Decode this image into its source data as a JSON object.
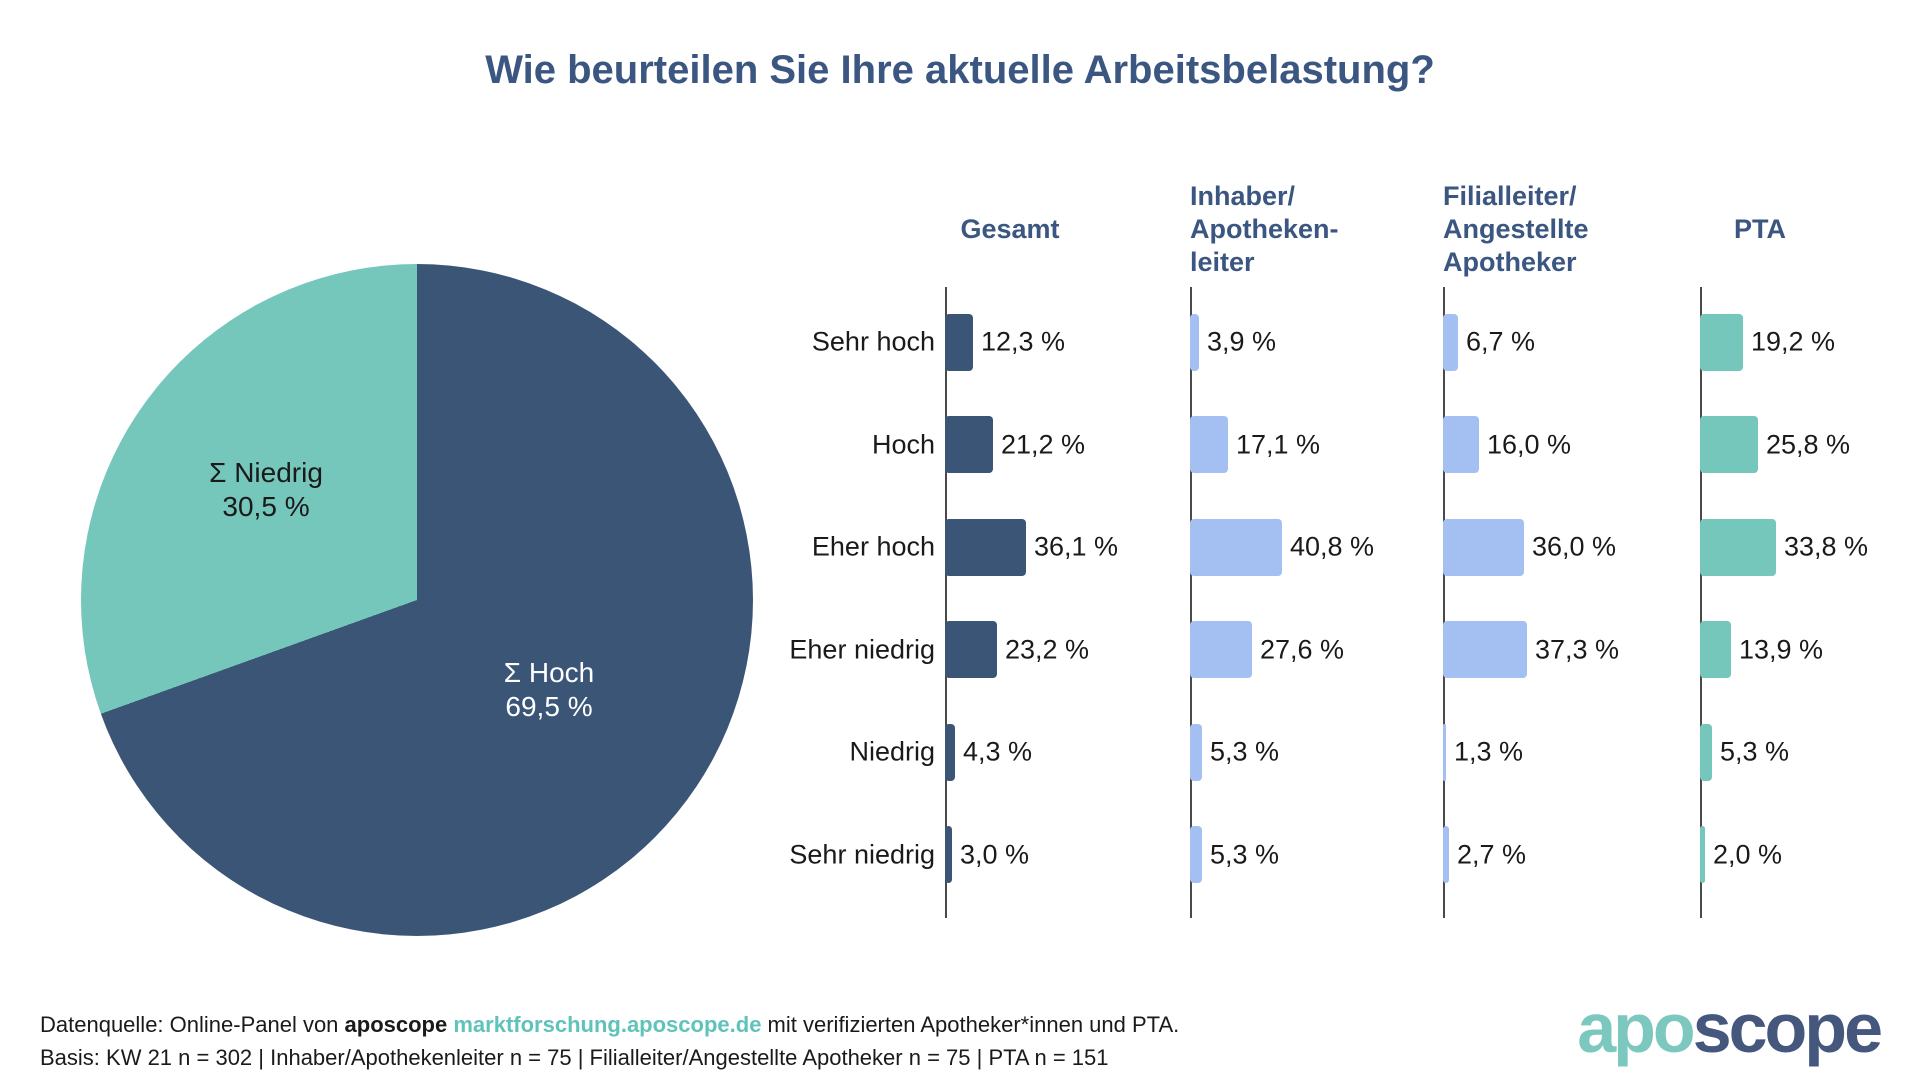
{
  "title": "Wie beurteilen Sie Ihre aktuelle Arbeitsbelastung?",
  "colors": {
    "title_blue": "#3A5681",
    "dark_blue": "#3B5577",
    "teal": "#75C6BB",
    "light_blue": "#A4C0F3",
    "link_teal": "#5FC3BA",
    "logo_teal": "#7CC8BE",
    "logo_blue": "#45577D",
    "axis_gray": "#4a4a4a"
  },
  "chart_data": [
    {
      "type": "pie",
      "start": "top",
      "direction": "clockwise",
      "slices": [
        {
          "name": "Σ Hoch",
          "value": 69.5,
          "label_line1": "Σ Hoch",
          "label_line2": "69,5 %",
          "color": "#3B5577",
          "text_color": "#ffffff"
        },
        {
          "name": "Σ Niedrig",
          "value": 30.5,
          "label_line1": "Σ Niedrig",
          "label_line2": "30,5 %",
          "color": "#75C6BB",
          "text_color": "#1a1a1a"
        }
      ]
    },
    {
      "type": "bar",
      "orientation": "horizontal",
      "value_suffix": " %",
      "xlim": [
        0,
        45
      ],
      "grid": false,
      "categories": [
        "Sehr hoch",
        "Hoch",
        "Eher hoch",
        "Eher niedrig",
        "Niedrig",
        "Sehr niedrig"
      ],
      "series": [
        {
          "name": "Gesamt",
          "color": "#3B5577",
          "values": [
            12.3,
            21.2,
            36.1,
            23.2,
            4.3,
            3.0
          ],
          "labels": [
            "12,3 %",
            "21,2 %",
            "36,1 %",
            "23,2 %",
            "4,3 %",
            "3,0 %"
          ]
        },
        {
          "name": "Inhaber/Apothekenleiter",
          "color": "#A4C0F3",
          "values": [
            3.9,
            17.1,
            40.8,
            27.6,
            5.3,
            5.3
          ],
          "labels": [
            "3,9 %",
            "17,1 %",
            "40,8 %",
            "27,6 %",
            "5,3 %",
            "5,3 %"
          ]
        },
        {
          "name": "Filialleiter/Angestellte Apotheker",
          "color": "#A4C0F3",
          "values": [
            6.7,
            16.0,
            36.0,
            37.3,
            1.3,
            2.7
          ],
          "labels": [
            "6,7 %",
            "16,0 %",
            "36,0 %",
            "37,3 %",
            "1,3 %",
            "2,7 %"
          ]
        },
        {
          "name": "PTA",
          "color": "#75C6BB",
          "values": [
            19.2,
            25.8,
            33.8,
            13.9,
            5.3,
            2.0
          ],
          "labels": [
            "19,2 %",
            "25,8 %",
            "33,8 %",
            "13,9 %",
            "5,3 %",
            "2,0 %"
          ]
        }
      ]
    }
  ],
  "columns": [
    {
      "label": "Gesamt",
      "lines": [
        "Gesamt"
      ]
    },
    {
      "label": "Inhaber/Apothekenleiter",
      "lines": [
        "Inhaber/",
        "Apotheken-",
        "leiter"
      ]
    },
    {
      "label": "Filialleiter/Angestellte Apotheker",
      "lines": [
        "Filialleiter/",
        "Angestellte",
        "Apotheker"
      ]
    },
    {
      "label": "PTA",
      "lines": [
        "PTA"
      ]
    }
  ],
  "footer": {
    "line1_pre": "Datenquelle: Online-Panel von ",
    "line1_bold": "aposcope",
    "line1_link": "marktforschung.aposcope.de",
    "line1_post": " mit verifizierten Apotheker*innen und PTA.",
    "line2": "Basis: KW 21 n = 302 | Inhaber/Apothekenleiter n = 75 |  Filialleiter/Angestellte Apotheker n = 75 | PTA n = 151"
  },
  "logo": {
    "part1": "apo",
    "part2": "scope"
  }
}
